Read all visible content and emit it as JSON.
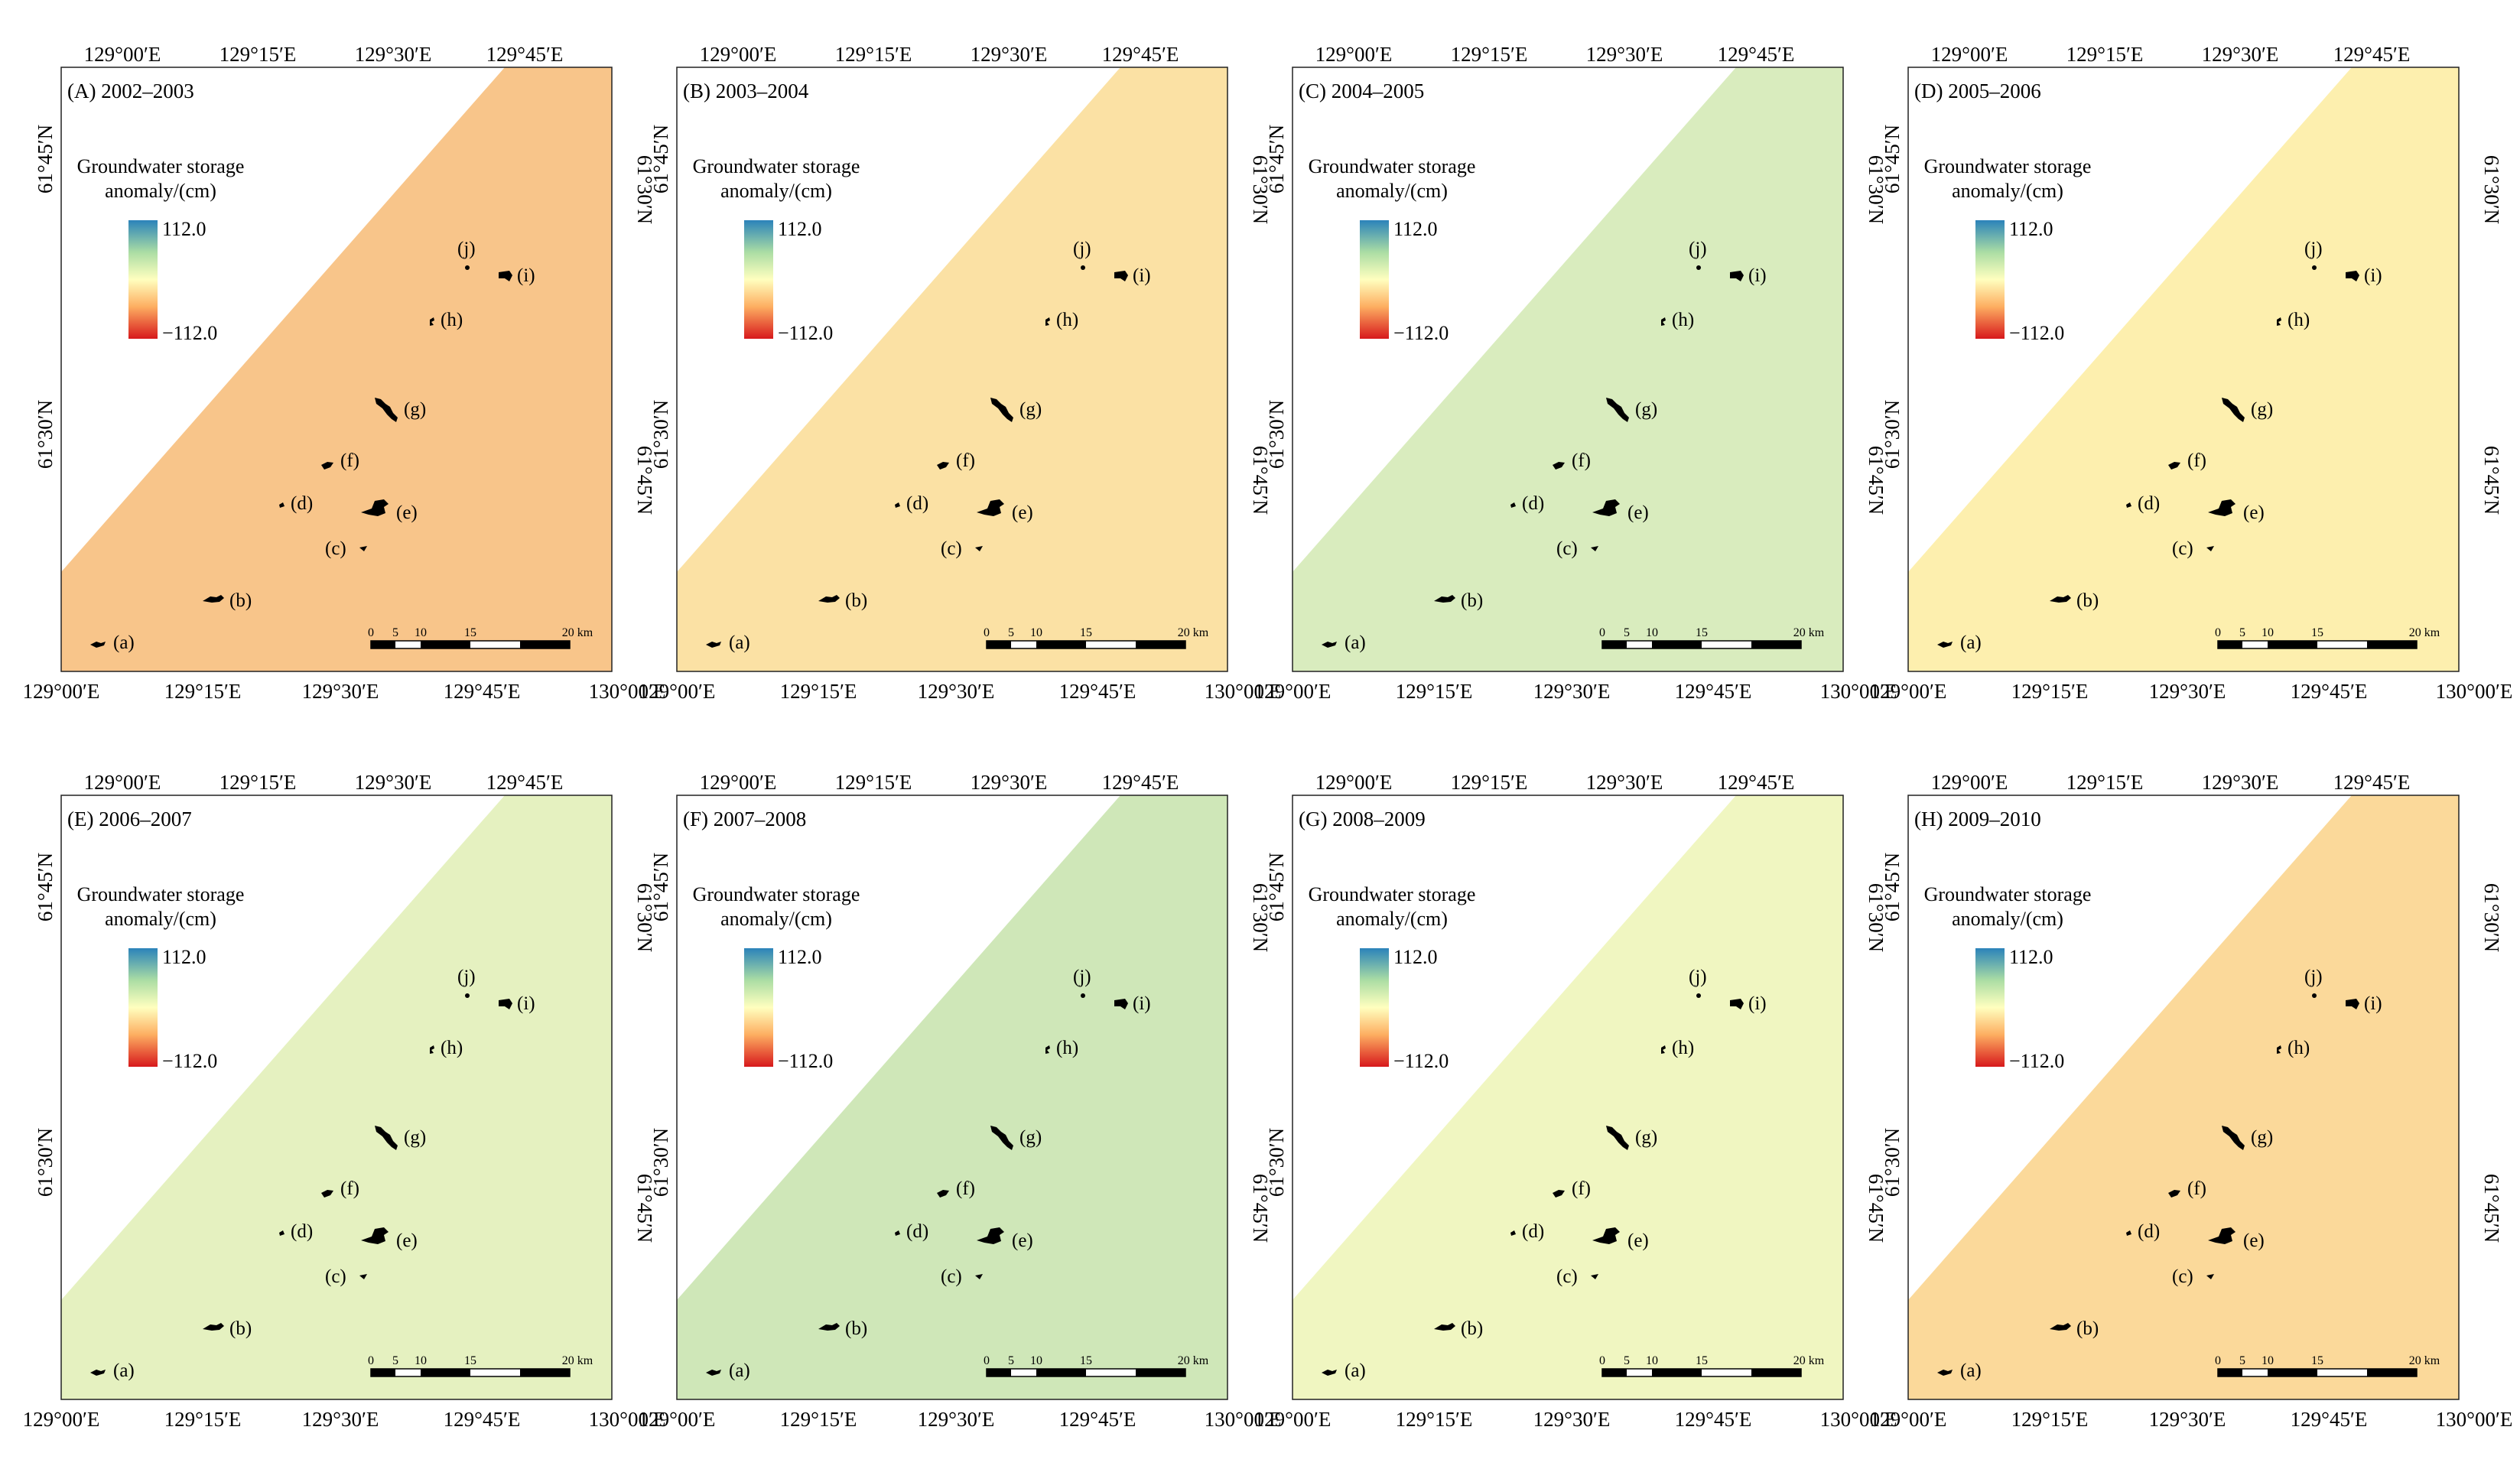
{
  "figure": {
    "top_axis_labels": [
      "129°00′E",
      "129°15′E",
      "129°30′E",
      "129°45′E"
    ],
    "bottom_axis_labels": [
      "129°00′E",
      "129°15′E",
      "129°30′E",
      "129°45′E",
      "130°00′E"
    ],
    "left_axis_labels": [
      "61°45′N",
      "61°30′N"
    ],
    "right_axis_labels": [
      "61°30′N",
      "61°45′N"
    ],
    "legend_title_line1": "Groundwater storage",
    "legend_title_line2": "anomaly/(cm)",
    "legend_max": "112.0",
    "legend_min": "−112.0",
    "legend_colors": [
      "#2b83ba",
      "#abdda4",
      "#ffffbf",
      "#fdae61",
      "#d7191c"
    ],
    "scale_labels": [
      "0",
      "5",
      "10",
      "15",
      "20 km"
    ],
    "lake_labels": [
      "(a)",
      "(b)",
      "(c)",
      "(d)",
      "(e)",
      "(f)",
      "(g)",
      "(h)",
      "(i)",
      "(j)"
    ],
    "panels": [
      {
        "id": "A",
        "title": "(A) 2002–2003",
        "color": "#f8c58a"
      },
      {
        "id": "B",
        "title": "(B) 2003–2004",
        "color": "#fbe1a4"
      },
      {
        "id": "C",
        "title": "(C) 2004–2005",
        "color": "#d9ecbe"
      },
      {
        "id": "D",
        "title": "(D) 2005–2006",
        "color": "#fdefae"
      },
      {
        "id": "E",
        "title": "(E) 2006–2007",
        "color": "#e5f1c0"
      },
      {
        "id": "F",
        "title": "(F) 2007–2008",
        "color": "#cfe7b8"
      },
      {
        "id": "G",
        "title": "(G) 2008–2009",
        "color": "#f0f6c1"
      },
      {
        "id": "H",
        "title": "(H) 2009–2010",
        "color": "#fbd99a"
      }
    ]
  }
}
